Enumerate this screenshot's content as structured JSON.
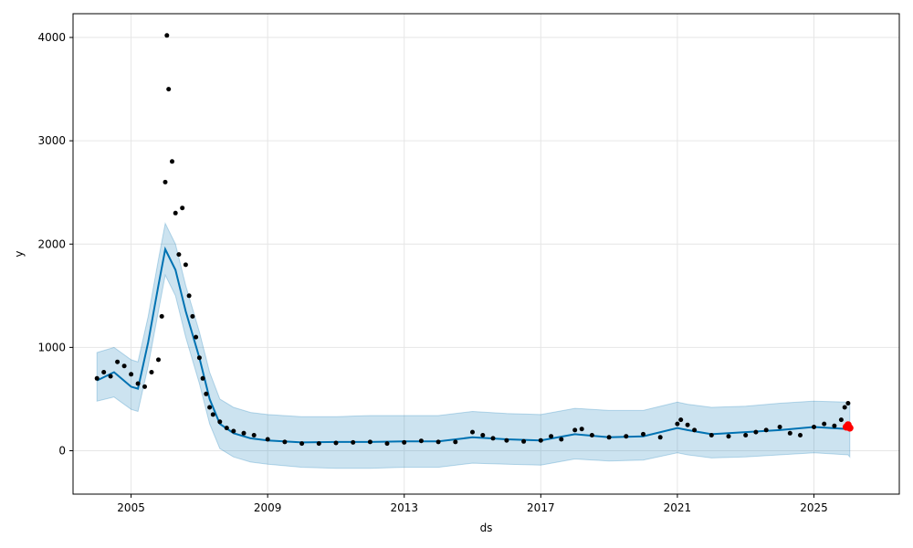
{
  "chart_data": {
    "type": "scatter",
    "title": "",
    "xlabel": "ds",
    "ylabel": "y",
    "xlim": [
      2003.3,
      2027.5
    ],
    "ylim": [
      -420,
      4230
    ],
    "x_ticks": [
      2005,
      2009,
      2013,
      2017,
      2021,
      2025
    ],
    "y_ticks": [
      0,
      1000,
      2000,
      3000,
      4000
    ],
    "grid": true,
    "colors": {
      "observed": "#000000",
      "forecast_line": "#0072B2",
      "uncertainty_band": "#0072B2",
      "recent_points": "#ff0000",
      "grid": "#e6e6e6"
    },
    "series": [
      {
        "role": "observed",
        "x": [
          2004.0,
          2004.2,
          2004.4,
          2004.6,
          2004.8,
          2005.0,
          2005.2,
          2005.4,
          2005.6,
          2005.8,
          2005.9,
          2006.0,
          2006.05,
          2006.1,
          2006.2,
          2006.3,
          2006.4,
          2006.5,
          2006.6,
          2006.7,
          2006.8,
          2006.9,
          2007.0,
          2007.1,
          2007.2,
          2007.3,
          2007.4,
          2007.6,
          2007.8,
          2008.0,
          2008.3,
          2008.6,
          2009.0,
          2009.5,
          2010.0,
          2010.5,
          2011.0,
          2011.5,
          2012.0,
          2012.5,
          2013.0,
          2013.5,
          2014.0,
          2014.5,
          2015.0,
          2015.3,
          2015.6,
          2016.0,
          2016.5,
          2017.0,
          2017.3,
          2017.6,
          2018.0,
          2018.2,
          2018.5,
          2019.0,
          2019.5,
          2020.0,
          2020.5,
          2021.0,
          2021.1,
          2021.3,
          2021.5,
          2022.0,
          2022.5,
          2023.0,
          2023.3,
          2023.6,
          2024.0,
          2024.3,
          2024.6,
          2025.0,
          2025.3,
          2025.6,
          2025.8,
          2025.9,
          2026.0
        ],
        "y": [
          700,
          760,
          720,
          860,
          820,
          740,
          650,
          620,
          760,
          880,
          1300,
          2600,
          4020,
          3500,
          2800,
          2300,
          1900,
          2350,
          1800,
          1500,
          1300,
          1100,
          900,
          700,
          550,
          420,
          350,
          280,
          220,
          190,
          170,
          150,
          110,
          85,
          70,
          70,
          75,
          80,
          85,
          70,
          80,
          95,
          85,
          85,
          180,
          150,
          120,
          100,
          90,
          100,
          140,
          110,
          200,
          210,
          150,
          130,
          140,
          160,
          130,
          260,
          300,
          250,
          200,
          150,
          140,
          150,
          180,
          200,
          230,
          170,
          150,
          230,
          260,
          240,
          300,
          420,
          460
        ]
      },
      {
        "role": "trend",
        "x": [
          2004.0,
          2004.5,
          2005.0,
          2005.2,
          2005.5,
          2005.8,
          2006.0,
          2006.3,
          2006.6,
          2007.0,
          2007.3,
          2007.6,
          2008.0,
          2008.5,
          2009.0,
          2010.0,
          2011.0,
          2012.0,
          2013.0,
          2014.0,
          2015.0,
          2016.0,
          2017.0,
          2018.0,
          2019.0,
          2020.0,
          2021.0,
          2021.3,
          2022.0,
          2023.0,
          2024.0,
          2025.0,
          2026.0
        ],
        "y": [
          680,
          760,
          620,
          600,
          1050,
          1600,
          1950,
          1750,
          1350,
          900,
          500,
          260,
          170,
          120,
          100,
          80,
          85,
          85,
          90,
          90,
          130,
          110,
          100,
          160,
          130,
          140,
          220,
          200,
          160,
          180,
          200,
          230,
          210
        ]
      },
      {
        "role": "recent",
        "x": [
          2025.95,
          2026.0,
          2026.05
        ],
        "y": [
          230,
          250,
          220
        ]
      }
    ],
    "uncertainty_band": {
      "x": [
        2004.0,
        2004.5,
        2005.0,
        2005.2,
        2005.5,
        2005.8,
        2006.0,
        2006.3,
        2006.6,
        2007.0,
        2007.3,
        2007.6,
        2008.0,
        2008.5,
        2009.0,
        2010.0,
        2011.0,
        2012.0,
        2013.0,
        2014.0,
        2015.0,
        2016.0,
        2017.0,
        2018.0,
        2019.0,
        2020.0,
        2021.0,
        2021.3,
        2022.0,
        2023.0,
        2024.0,
        2025.0,
        2026.0,
        2026.05
      ],
      "upper": [
        950,
        1000,
        880,
        860,
        1300,
        1850,
        2200,
        2000,
        1600,
        1150,
        760,
        500,
        420,
        370,
        350,
        330,
        330,
        340,
        340,
        340,
        380,
        360,
        350,
        410,
        390,
        390,
        470,
        450,
        420,
        430,
        460,
        480,
        470,
        460
      ],
      "lower": [
        480,
        520,
        400,
        380,
        820,
        1350,
        1700,
        1500,
        1100,
        650,
        260,
        20,
        -60,
        -110,
        -130,
        -160,
        -170,
        -170,
        -160,
        -160,
        -120,
        -130,
        -140,
        -80,
        -100,
        -90,
        -20,
        -40,
        -70,
        -60,
        -40,
        -20,
        -40,
        -60
      ]
    }
  }
}
